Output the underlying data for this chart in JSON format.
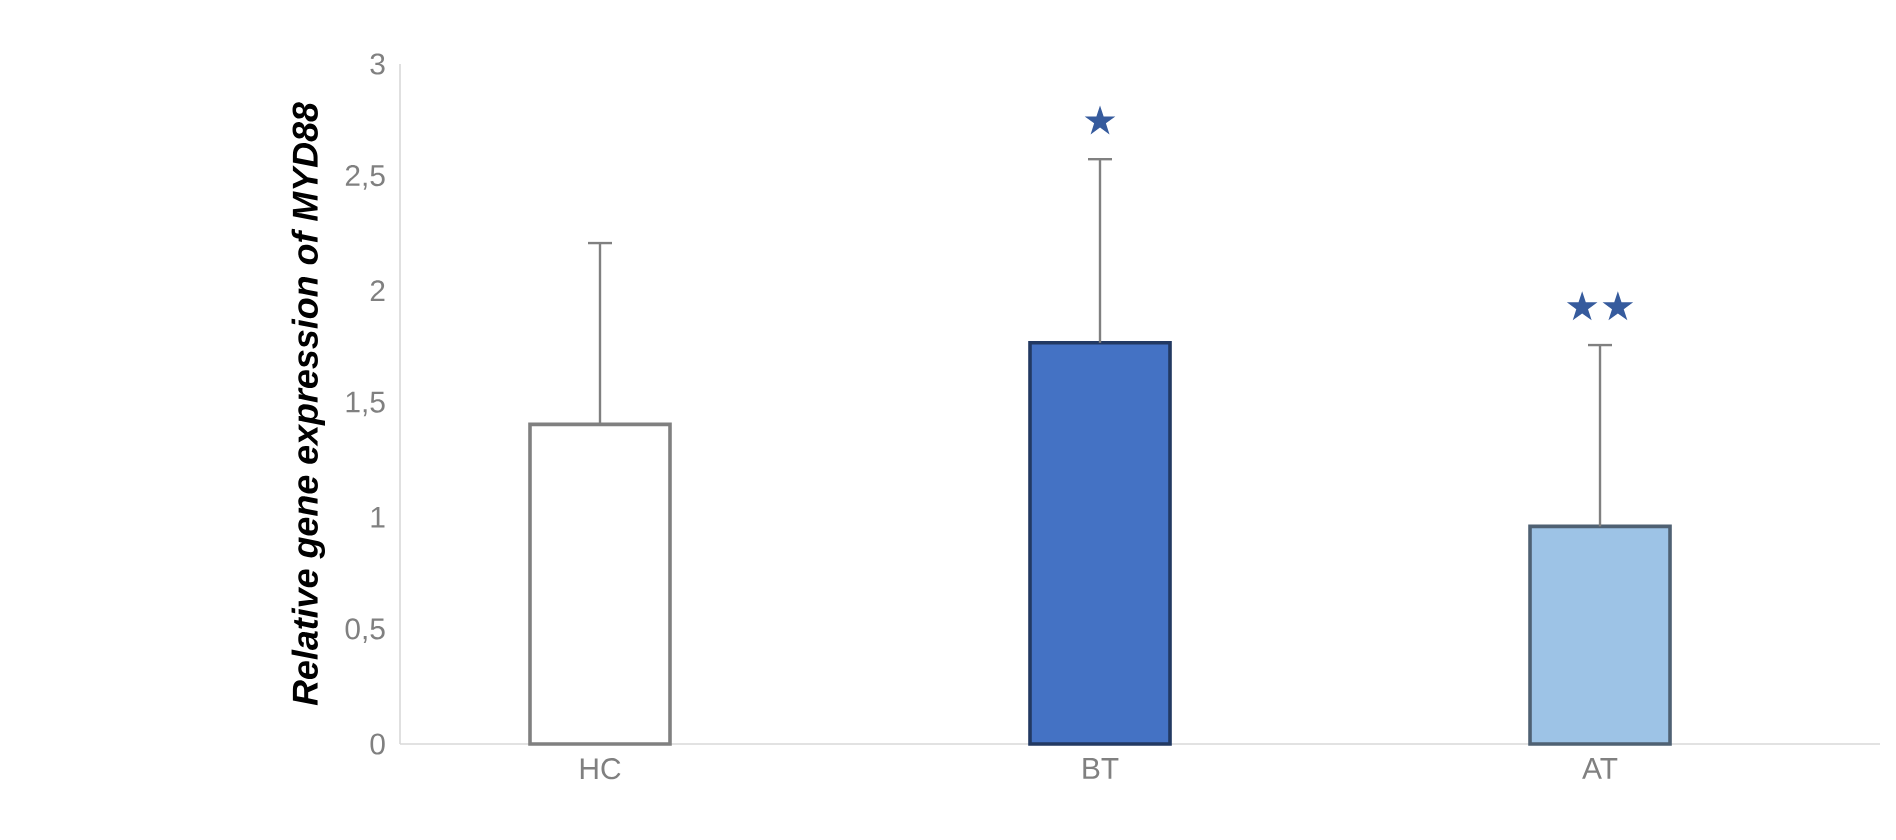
{
  "chart_data": {
    "type": "bar",
    "ylabel": "Relative gene expression of MYD88",
    "categories": [
      "HC",
      "BT",
      "AT"
    ],
    "values": [
      1.41,
      1.77,
      0.96
    ],
    "colors": [
      "#ffffff",
      "#4472c4",
      "#9dc3e6"
    ],
    "errors": [
      [
        1.41,
        2.21
      ],
      [
        1.77,
        2.58
      ],
      [
        0.96,
        1.76
      ]
    ],
    "ylim": [
      0,
      3
    ],
    "yticks": [
      0,
      {
        "value": 0.5,
        "label": "0,5"
      },
      1,
      {
        "value": 1.5,
        "label": "1,5"
      },
      2,
      {
        "value": 2.5,
        "label": "2,5"
      },
      3
    ],
    "annotations": [
      "★",
      "★★"
    ]
  }
}
